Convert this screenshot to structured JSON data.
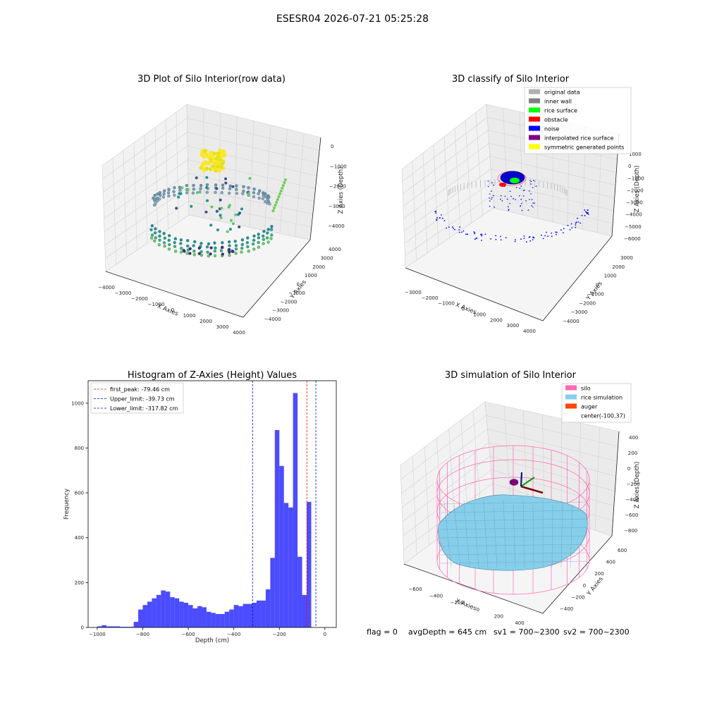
{
  "suptitle": "ESESR04 2026-07-21 05:25:28",
  "status": {
    "flag": "flag = 0",
    "avg_depth": "avgDepth = 645 cm",
    "sv1": "sv1 = 700~2300",
    "sv2": "sv2 = 700~2300"
  },
  "chart_data": [
    {
      "type": "scatter",
      "title": "3D Plot of Silo Interior(row data)",
      "xlabel": "X Axies",
      "ylabel": "Y Axies",
      "zlabel": "Z Axies (Depth)",
      "xticks": [
        "−4000",
        "−3000",
        "−2000",
        "−1000",
        "0",
        "1000",
        "2000",
        "3000",
        "4000"
      ],
      "yticks": [
        "−4000",
        "−3000",
        "−2000",
        "−1000",
        "0",
        "1000",
        "2000",
        "3000",
        "4000"
      ],
      "zticks": [
        "0",
        "−1000",
        "−2000",
        "−3000",
        "−4000"
      ]
    },
    {
      "type": "scatter",
      "title": "3D classify of Silo Interior",
      "xlabel": "X Axies",
      "ylabel": "Y Axies",
      "zlabel": "Z Axies (Depth)",
      "xticks": [
        "−3000",
        "−2000",
        "−1000",
        "0",
        "1000",
        "2000",
        "3000",
        "4000"
      ],
      "yticks": [
        "−4000",
        "−3000",
        "−2000",
        "−1000",
        "0",
        "1000",
        "2000",
        "3000"
      ],
      "zticks": [
        "1000",
        "0",
        "−1000",
        "−2000",
        "−3000",
        "−4000",
        "−5000",
        "−6000"
      ],
      "legend": [
        {
          "label": "original data",
          "color": "#b0b0b0"
        },
        {
          "label": "inner wall",
          "color": "#808080"
        },
        {
          "label": "rice surface",
          "color": "#00ff00"
        },
        {
          "label": "obstacle",
          "color": "#ff0000"
        },
        {
          "label": "noise",
          "color": "#0000ff"
        },
        {
          "label": "interpolated rice surface",
          "color": "#800080"
        },
        {
          "label": "symmetric generated points",
          "color": "#ffff00"
        }
      ]
    },
    {
      "type": "bar",
      "title": "Histogram of Z-Axies (Height) Values",
      "xlabel": "Depth (cm)",
      "ylabel": "Frequency",
      "xlim": [
        -1040,
        50
      ],
      "ylim": [
        0,
        1100
      ],
      "xticks": [
        -1000,
        -800,
        -600,
        -400,
        -200,
        0
      ],
      "xtick_labels": [
        "−1000",
        "−800",
        "−600",
        "−400",
        "−200",
        "0"
      ],
      "yticks": [
        0,
        200,
        400,
        600,
        800,
        1000
      ],
      "bin_start": -1000,
      "bin_width": 20,
      "values": [
        5,
        10,
        5,
        5,
        5,
        3,
        3,
        3,
        25,
        80,
        100,
        115,
        130,
        145,
        165,
        160,
        135,
        130,
        115,
        110,
        100,
        85,
        95,
        90,
        70,
        65,
        60,
        60,
        70,
        80,
        100,
        95,
        105,
        105,
        110,
        120,
        120,
        170,
        310,
        880,
        720,
        555,
        535,
        1045,
        315,
        145,
        560
      ],
      "color": "#0000ff",
      "lines": [
        {
          "label": "first_peak: -79.46 cm",
          "x": -79.46,
          "color": "#ff0000"
        },
        {
          "label": "Upper_limit: -39.73 cm",
          "x": -39.73,
          "color": "#0000ff"
        },
        {
          "label": "Lower_limit: -317.82 cm",
          "x": -317.82,
          "color": "#0000ff"
        }
      ]
    },
    {
      "type": "other",
      "title": "3D simulation of Silo Interior",
      "xlabel": "X Axies",
      "ylabel": "Y Axies",
      "zlabel": "Z Axies (Depth)",
      "xticks": [
        "−600",
        "−400",
        "−200",
        "0",
        "200",
        "400"
      ],
      "yticks": [
        "600",
        "400",
        "200",
        "0",
        "−200",
        "−400"
      ],
      "zticks": [
        "400",
        "200",
        "0",
        "−200",
        "−400",
        "−600",
        "−800"
      ],
      "legend": [
        {
          "label": "silo",
          "color": "#ff69b4"
        },
        {
          "label": "rice simulation",
          "color": "#87ceeb"
        },
        {
          "label": "auger",
          "color": "#ff4500"
        },
        {
          "label": "center(-100,37)",
          "color": ""
        }
      ]
    }
  ]
}
